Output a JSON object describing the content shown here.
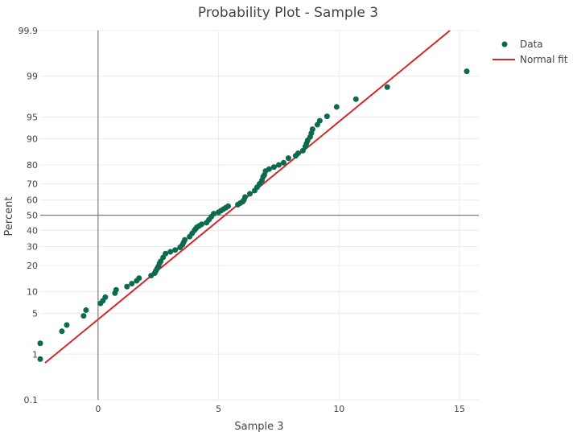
{
  "chart_data": {
    "type": "scatter",
    "title": "Probability Plot - Sample 3",
    "xlabel": "Sample 3",
    "ylabel": "Percent",
    "xlim": [
      -2.4,
      15.8
    ],
    "ylim": [
      0.1,
      99.9
    ],
    "y_scale": "normal-probability",
    "x_ticks": [
      0,
      5,
      10,
      15
    ],
    "y_ticks": [
      0.1,
      1,
      5,
      10,
      20,
      30,
      40,
      50,
      60,
      70,
      80,
      90,
      95,
      99,
      99.9
    ],
    "x_tick_labels": [
      "0",
      "5",
      "10",
      "15"
    ],
    "y_tick_labels": [
      "0.1",
      "1",
      "5",
      "10",
      "20",
      "30",
      "40",
      "50",
      "60",
      "70",
      "80",
      "90",
      "95",
      "99",
      "99.9"
    ],
    "grid": true,
    "reference_lines": {
      "x": 0,
      "y": 50
    },
    "legend_position": "top-right",
    "colors": {
      "data": "#0b6b4f",
      "fit": "#d62728",
      "reference": "#808080"
    },
    "series": [
      {
        "name": "Data",
        "kind": "points",
        "x": [
          -2.4,
          -2.4,
          -1.5,
          -1.3,
          -0.6,
          -0.5,
          0.1,
          0.2,
          0.3,
          0.7,
          0.75,
          1.2,
          1.4,
          1.6,
          1.7,
          2.2,
          2.35,
          2.4,
          2.45,
          2.5,
          2.55,
          2.6,
          2.7,
          2.8,
          3.0,
          3.2,
          3.4,
          3.5,
          3.55,
          3.6,
          3.8,
          3.9,
          4.0,
          4.05,
          4.1,
          4.2,
          4.3,
          4.5,
          4.6,
          4.7,
          4.8,
          5.0,
          5.1,
          5.2,
          5.3,
          5.4,
          5.8,
          5.9,
          6.0,
          6.05,
          6.1,
          6.3,
          6.5,
          6.6,
          6.7,
          6.8,
          6.85,
          6.9,
          6.95,
          7.1,
          7.3,
          7.5,
          7.7,
          7.9,
          8.2,
          8.3,
          8.5,
          8.6,
          8.65,
          8.7,
          8.8,
          8.85,
          8.9,
          9.1,
          9.2,
          9.5,
          9.9,
          10.7,
          12.0,
          15.3
        ],
        "y": [
          0.8,
          1.6,
          2.6,
          3.3,
          4.6,
          5.6,
          7.0,
          7.6,
          8.5,
          9.6,
          10.6,
          11.6,
          12.6,
          13.6,
          14.6,
          15.6,
          16.6,
          17.6,
          18.6,
          19.6,
          21.0,
          22.0,
          24.0,
          26.0,
          27.0,
          28.0,
          29.5,
          31.0,
          32.5,
          34.0,
          36.0,
          38.0,
          40.0,
          41.0,
          42.0,
          43.0,
          44.0,
          45.0,
          47.0,
          49.0,
          51.0,
          52.0,
          53.0,
          54.0,
          55.0,
          56.0,
          57.0,
          58.0,
          59.0,
          60.0,
          62.0,
          64.0,
          66.0,
          68.0,
          70.0,
          72.0,
          74.0,
          75.0,
          77.0,
          78.0,
          79.0,
          80.0,
          81.0,
          83.0,
          84.0,
          85.0,
          86.0,
          87.5,
          88.5,
          89.5,
          90.5,
          91.5,
          92.5,
          93.5,
          94.3,
          95.1,
          96.5,
          97.4,
          98.4,
          99.2
        ]
      },
      {
        "name": "Normal fit",
        "kind": "line",
        "x": [
          -2.2,
          14.6
        ],
        "y": [
          0.67,
          99.9
        ]
      }
    ]
  }
}
